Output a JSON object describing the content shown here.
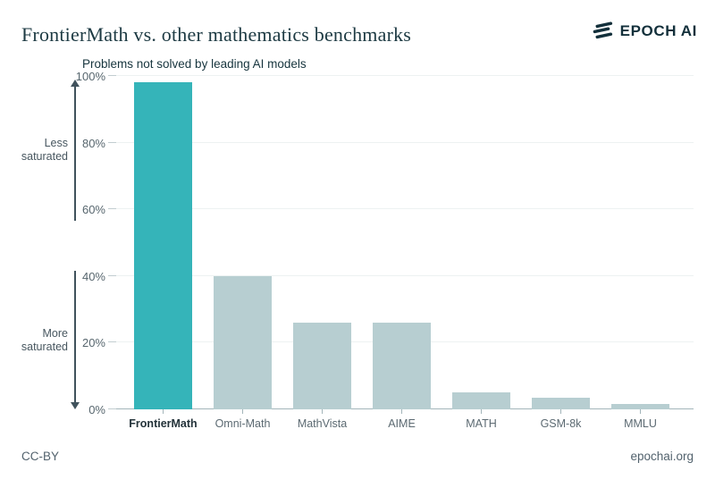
{
  "header": {
    "title": "FrontierMath vs. other mathematics benchmarks",
    "logo_text": "EPOCH AI"
  },
  "chart_data": {
    "type": "bar",
    "title": "Problems not solved by leading AI models",
    "categories": [
      "FrontierMath",
      "Omni-Math",
      "MathVista",
      "AIME",
      "MATH",
      "GSM-8k",
      "MMLU"
    ],
    "values": [
      98,
      40,
      26,
      26,
      5,
      3.5,
      1.5
    ],
    "unit": "%",
    "highlight_category": "FrontierMath",
    "ylim": [
      0,
      100
    ],
    "ytick_values": [
      100,
      80,
      60,
      40,
      20,
      0
    ],
    "yticks": [
      "100%",
      "80%",
      "60%",
      "40%",
      "20%",
      "0%"
    ],
    "grid": true,
    "legend": false,
    "colors": {
      "highlight": "#35b4b9",
      "default": "#b7ced1"
    },
    "annotations": [
      {
        "label": "Less saturated",
        "direction": "up",
        "span_pct": [
          56.5,
          99
        ]
      },
      {
        "label": "More saturated",
        "direction": "down",
        "span_pct": [
          0,
          41.5
        ]
      }
    ]
  },
  "footer": {
    "license": "CC-BY",
    "website": "epochai.org"
  }
}
